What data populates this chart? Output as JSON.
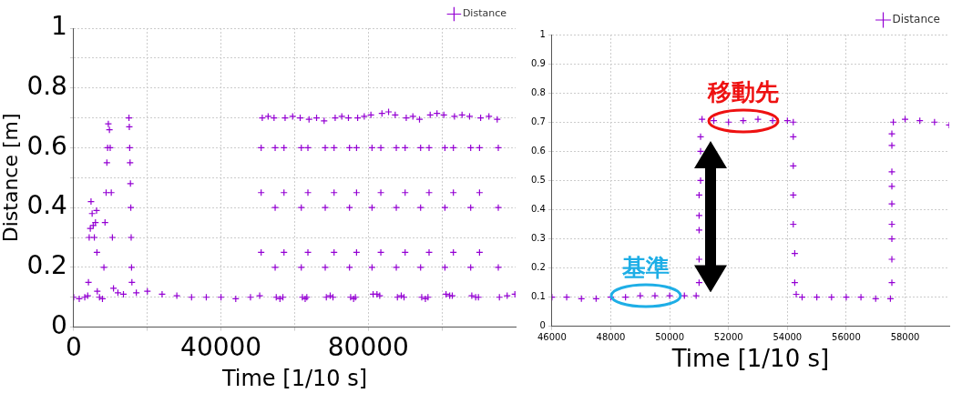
{
  "chart_data": [
    {
      "type": "scatter",
      "xlabel": "Time [1/10 s]",
      "ylabel": "Distance [m]",
      "xlim": [
        0,
        120000
      ],
      "xticks": [
        0,
        {
          "value": 20000,
          "label": null
        },
        40000,
        {
          "value": 60000,
          "label": null
        },
        80000,
        {
          "value": 100000,
          "label": null
        }
      ],
      "ylim": [
        0,
        1
      ],
      "yticks": [
        0,
        {
          "value": 0.1,
          "label": null
        },
        0.2,
        {
          "value": 0.3,
          "label": null
        },
        0.4,
        {
          "value": 0.5,
          "label": null
        },
        0.6,
        {
          "value": 0.7,
          "label": null
        },
        0.8,
        {
          "value": 0.9,
          "label": null
        },
        1
      ],
      "grid": true,
      "legend": "top right",
      "marker": "cross",
      "series": [
        {
          "name": "Distance",
          "color": "#9400d3",
          "x": [
            0,
            1500,
            3000,
            3800,
            4000,
            4200,
            4500,
            4700,
            5000,
            5300,
            5600,
            5900,
            6200,
            6300,
            6400,
            7000,
            7800,
            8200,
            8500,
            8800,
            9000,
            9200,
            9400,
            9700,
            9900,
            10200,
            10500,
            10800,
            12000,
            13500,
            15000,
            15100,
            15200,
            15300,
            15400,
            15500,
            15600,
            15700,
            15800,
            17000,
            20000,
            24000,
            28000,
            32000,
            36000,
            40000,
            44000,
            48000,
            50500,
            50900,
            50900,
            50900,
            51200,
            52800,
            54400,
            54700,
            54700,
            54700,
            55000,
            56000,
            56800,
            57100,
            57100,
            57100,
            57400,
            59450,
            61500,
            61800,
            61800,
            61800,
            62100,
            62850,
            63300,
            63600,
            63600,
            63600,
            63900,
            65950,
            68000,
            68300,
            68300,
            68300,
            68600,
            69650,
            70400,
            70700,
            70700,
            70700,
            71000,
            72800,
            74600,
            74900,
            74900,
            74900,
            75200,
            76000,
            76500,
            76800,
            76800,
            76800,
            77100,
            78900,
            80700,
            81000,
            81000,
            81000,
            81300,
            82350,
            83100,
            83400,
            83400,
            83400,
            83700,
            85500,
            87300,
            87600,
            87600,
            87600,
            87900,
            88950,
            89700,
            90000,
            90000,
            90000,
            90300,
            92100,
            93900,
            94200,
            94200,
            94200,
            94500,
            95500,
            96200,
            96500,
            96500,
            96500,
            96800,
            98650,
            100500,
            100800,
            100800,
            100800,
            101100,
            102100,
            102800,
            103100,
            103100,
            103100,
            103400,
            105450,
            107500,
            107800,
            107800,
            107800,
            108100,
            109150,
            109900,
            110200,
            110200,
            110200,
            110500,
            112750,
            115000,
            115300,
            115300,
            115300,
            115600,
            117700,
            119800
          ],
          "values": [
            0.1,
            0.095,
            0.1,
            0.105,
            0.15,
            0.3,
            0.33,
            0.42,
            0.38,
            0.34,
            0.3,
            0.35,
            0.39,
            0.25,
            0.12,
            0.1,
            0.095,
            0.2,
            0.35,
            0.45,
            0.55,
            0.6,
            0.68,
            0.66,
            0.6,
            0.45,
            0.3,
            0.13,
            0.115,
            0.11,
            0.7,
            0.67,
            0.6,
            0.55,
            0.48,
            0.4,
            0.3,
            0.2,
            0.15,
            0.115,
            0.12,
            0.11,
            0.105,
            0.1,
            0.1,
            0.1,
            0.095,
            0.1,
            0.105,
            0.25,
            0.45,
            0.6,
            0.7,
            0.705,
            0.7,
            0.6,
            0.4,
            0.2,
            0.1,
            0.095,
            0.1,
            0.25,
            0.45,
            0.6,
            0.7,
            0.705,
            0.7,
            0.6,
            0.4,
            0.2,
            0.1,
            0.095,
            0.1,
            0.25,
            0.45,
            0.6,
            0.695,
            0.7,
            0.69,
            0.6,
            0.4,
            0.2,
            0.1,
            0.105,
            0.1,
            0.25,
            0.45,
            0.6,
            0.7,
            0.705,
            0.7,
            0.6,
            0.4,
            0.2,
            0.1,
            0.095,
            0.1,
            0.25,
            0.45,
            0.6,
            0.7,
            0.705,
            0.71,
            0.6,
            0.4,
            0.2,
            0.11,
            0.11,
            0.105,
            0.25,
            0.45,
            0.6,
            0.715,
            0.72,
            0.71,
            0.6,
            0.4,
            0.2,
            0.1,
            0.105,
            0.1,
            0.25,
            0.45,
            0.6,
            0.7,
            0.705,
            0.695,
            0.6,
            0.4,
            0.2,
            0.1,
            0.095,
            0.1,
            0.25,
            0.45,
            0.6,
            0.71,
            0.715,
            0.71,
            0.6,
            0.4,
            0.2,
            0.11,
            0.105,
            0.105,
            0.25,
            0.45,
            0.6,
            0.705,
            0.71,
            0.705,
            0.6,
            0.4,
            0.2,
            0.105,
            0.1,
            0.1,
            0.25,
            0.45,
            0.6,
            0.7,
            0.705,
            0.695,
            0.6,
            0.4,
            0.2,
            0.1,
            0.105,
            0.11
          ]
        }
      ]
    },
    {
      "type": "scatter",
      "xlabel": "Time [1/10 s]",
      "xlim": [
        46000,
        59500
      ],
      "xticks": [
        46000,
        48000,
        50000,
        52000,
        54000,
        56000,
        58000
      ],
      "ylim": [
        0,
        1
      ],
      "yticks": [
        0,
        0.1,
        0.2,
        0.3,
        0.4,
        0.5,
        0.6,
        0.7,
        0.8,
        0.9,
        1
      ],
      "grid": true,
      "legend": "top right",
      "marker": "cross",
      "annotations": [
        {
          "text": "基準",
          "x": 49200,
          "y": 0.105
        },
        {
          "text": "移動先",
          "x": 52500,
          "y": 0.705
        }
      ],
      "series": [
        {
          "name": "Distance",
          "color": "#9400d3",
          "x": [
            46000,
            46500,
            47000,
            47500,
            48000,
            48500,
            49000,
            49500,
            50000,
            50500,
            50900,
            51000,
            51000,
            51000,
            51000,
            51000,
            51050,
            51050,
            51050,
            51100,
            51500,
            52000,
            52500,
            53000,
            53500,
            54000,
            54200,
            54200,
            54200,
            54200,
            54200,
            54250,
            54250,
            54300,
            54500,
            55000,
            55500,
            56000,
            56500,
            57000,
            57500,
            57550,
            57550,
            57550,
            57550,
            57550,
            57550,
            57550,
            57550,
            57550,
            57600,
            58000,
            58500,
            59000,
            59500
          ],
          "values": [
            0.1,
            0.1,
            0.095,
            0.095,
            0.1,
            0.1,
            0.105,
            0.105,
            0.105,
            0.105,
            0.105,
            0.15,
            0.23,
            0.33,
            0.38,
            0.45,
            0.5,
            0.6,
            0.65,
            0.71,
            0.705,
            0.7,
            0.705,
            0.71,
            0.705,
            0.705,
            0.7,
            0.65,
            0.55,
            0.45,
            0.35,
            0.25,
            0.15,
            0.11,
            0.1,
            0.1,
            0.1,
            0.1,
            0.1,
            0.095,
            0.095,
            0.15,
            0.23,
            0.3,
            0.35,
            0.42,
            0.48,
            0.53,
            0.62,
            0.66,
            0.7,
            0.71,
            0.705,
            0.7,
            0.69
          ]
        }
      ]
    }
  ]
}
